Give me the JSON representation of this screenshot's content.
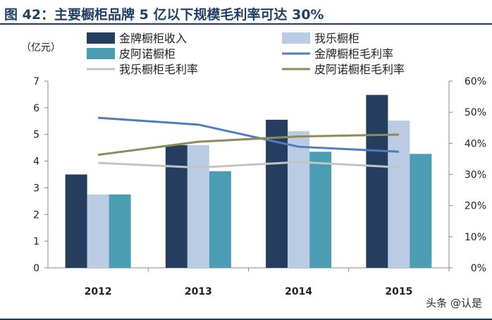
{
  "header": {
    "title": "图 42：主要橱柜品牌 5 亿以下规模毛利率可达 30%",
    "title_color": "#1f3f66"
  },
  "watermark": {
    "text": "头条 @认是"
  },
  "chart_data": {
    "type": "bar",
    "title": "图 42：主要橱柜品牌 5 亿以下规模毛利率可达 30%",
    "categories": [
      "2012",
      "2013",
      "2014",
      "2015"
    ],
    "y_unit_label": "（亿元）",
    "ylim": [
      0,
      7
    ],
    "yticks": [
      "0",
      "1",
      "2",
      "3",
      "4",
      "5",
      "6",
      "7"
    ],
    "y2lim": [
      0,
      60
    ],
    "y2ticks": [
      "0%",
      "10%",
      "20%",
      "30%",
      "40%",
      "50%",
      "60%"
    ],
    "legend_position": "top",
    "series": [
      {
        "name": "金牌橱柜收入",
        "kind": "bar",
        "axis": "left",
        "color": "#253d5e",
        "values": [
          3.5,
          4.6,
          5.55,
          6.48
        ]
      },
      {
        "name": "我乐橱柜",
        "kind": "bar",
        "axis": "left",
        "color": "#b9cce4",
        "values": [
          2.75,
          4.6,
          5.12,
          5.52
        ]
      },
      {
        "name": "皮阿诺橱柜",
        "kind": "bar",
        "axis": "left",
        "color": "#4a9db3",
        "values": [
          2.75,
          3.62,
          4.35,
          4.27
        ]
      },
      {
        "name": "金牌橱柜毛利率",
        "kind": "line",
        "axis": "right",
        "color": "#4f7cbf",
        "values": [
          48.2,
          46.0,
          38.9,
          37.3
        ]
      },
      {
        "name": "我乐橱柜毛利率",
        "kind": "line",
        "axis": "right",
        "color": "#c4c4c4",
        "values": [
          33.7,
          32.2,
          34.0,
          32.3
        ]
      },
      {
        "name": "皮阿诺橱柜毛利率",
        "kind": "line",
        "axis": "right",
        "color": "#8e8a5e",
        "values": [
          36.3,
          40.5,
          42.2,
          42.8
        ]
      }
    ]
  }
}
